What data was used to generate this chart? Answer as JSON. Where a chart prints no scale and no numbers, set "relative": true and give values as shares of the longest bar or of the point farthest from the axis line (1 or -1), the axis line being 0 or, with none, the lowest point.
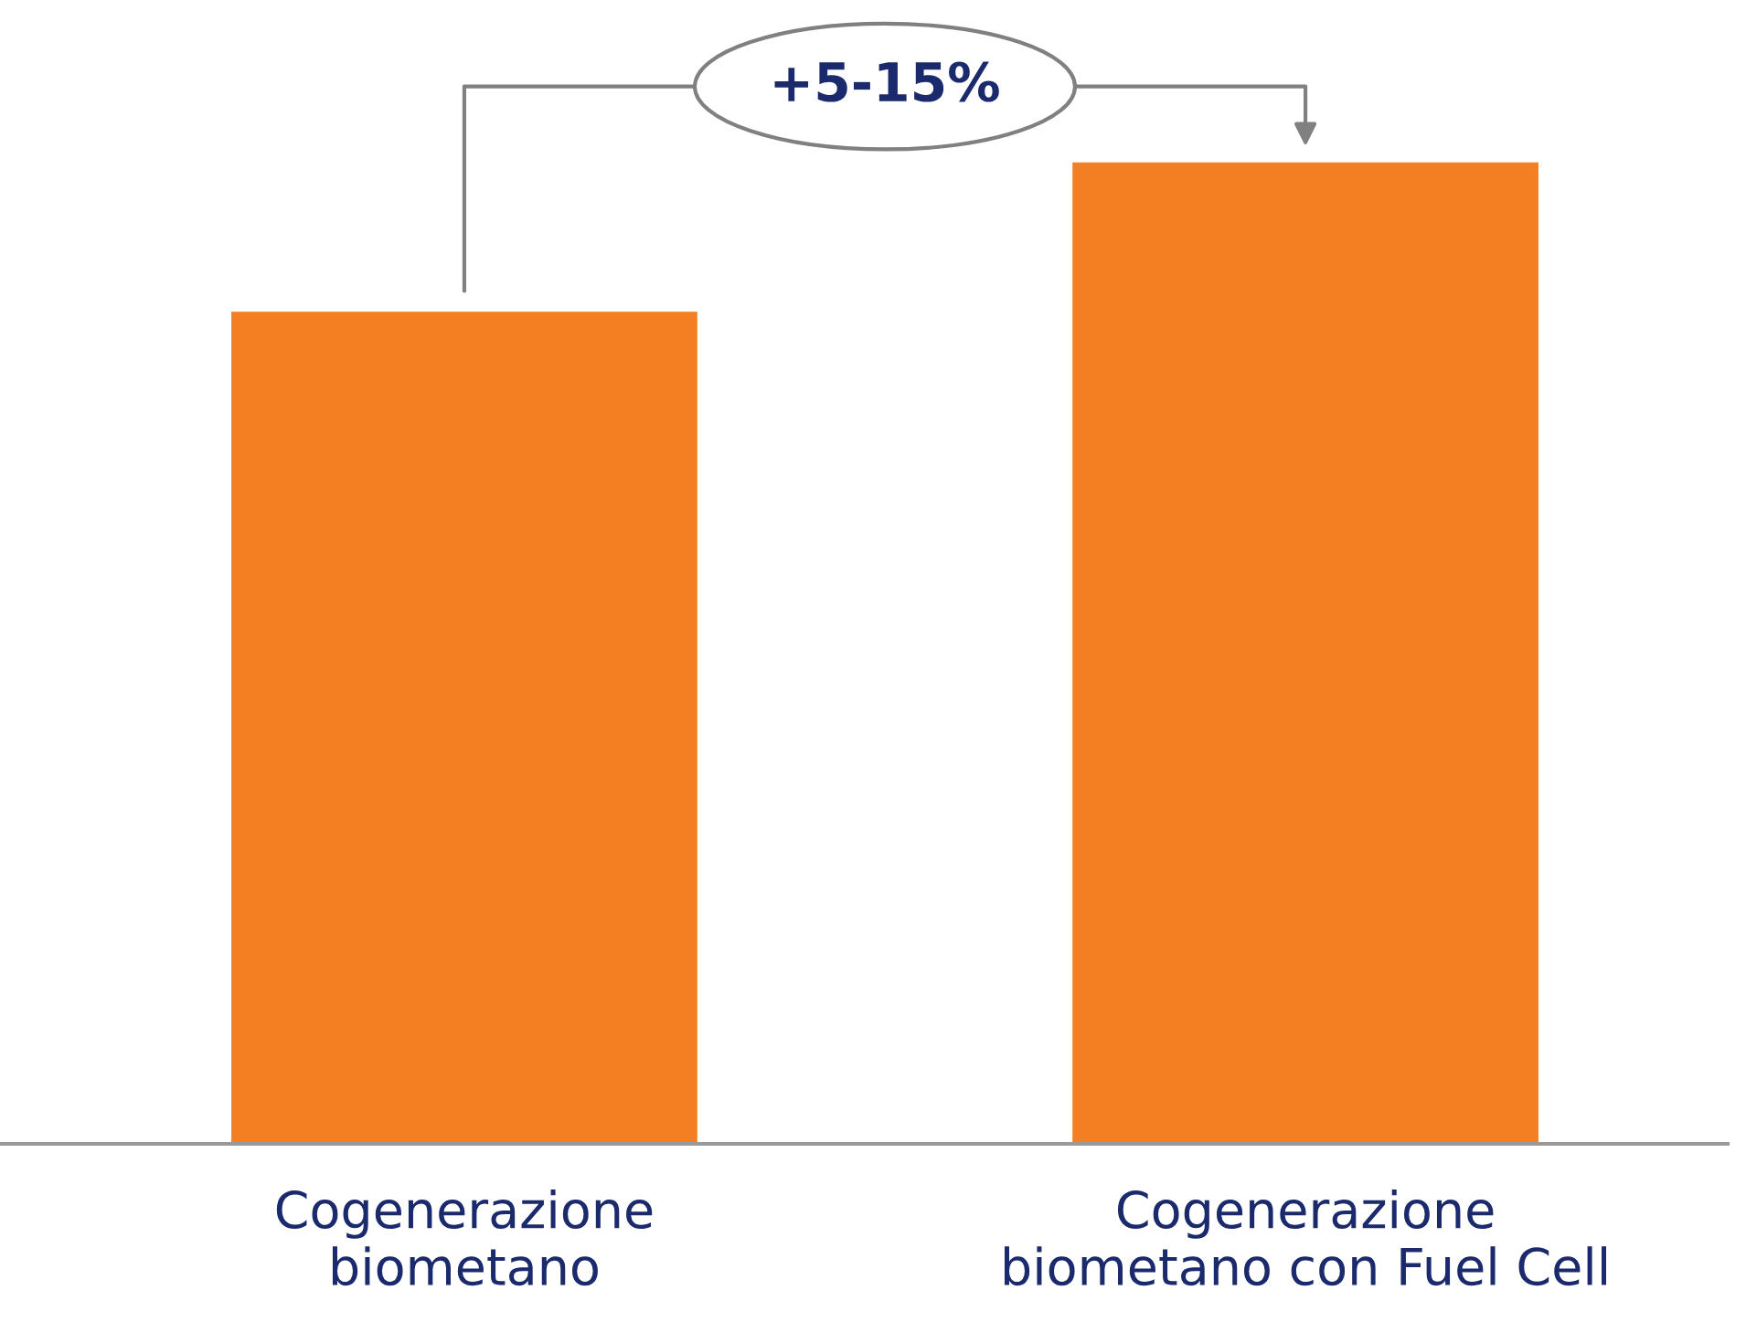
{
  "chart_data": {
    "type": "bar",
    "relative": true,
    "categories": [
      "Cogenerazione\nbiometano",
      "Cogenerazione\nbiometano con Fuel Cell"
    ],
    "values": [
      0.848,
      1
    ],
    "color": "#f37f22",
    "annotations": [
      "+5-15%"
    ],
    "grid": false,
    "legend": false
  }
}
